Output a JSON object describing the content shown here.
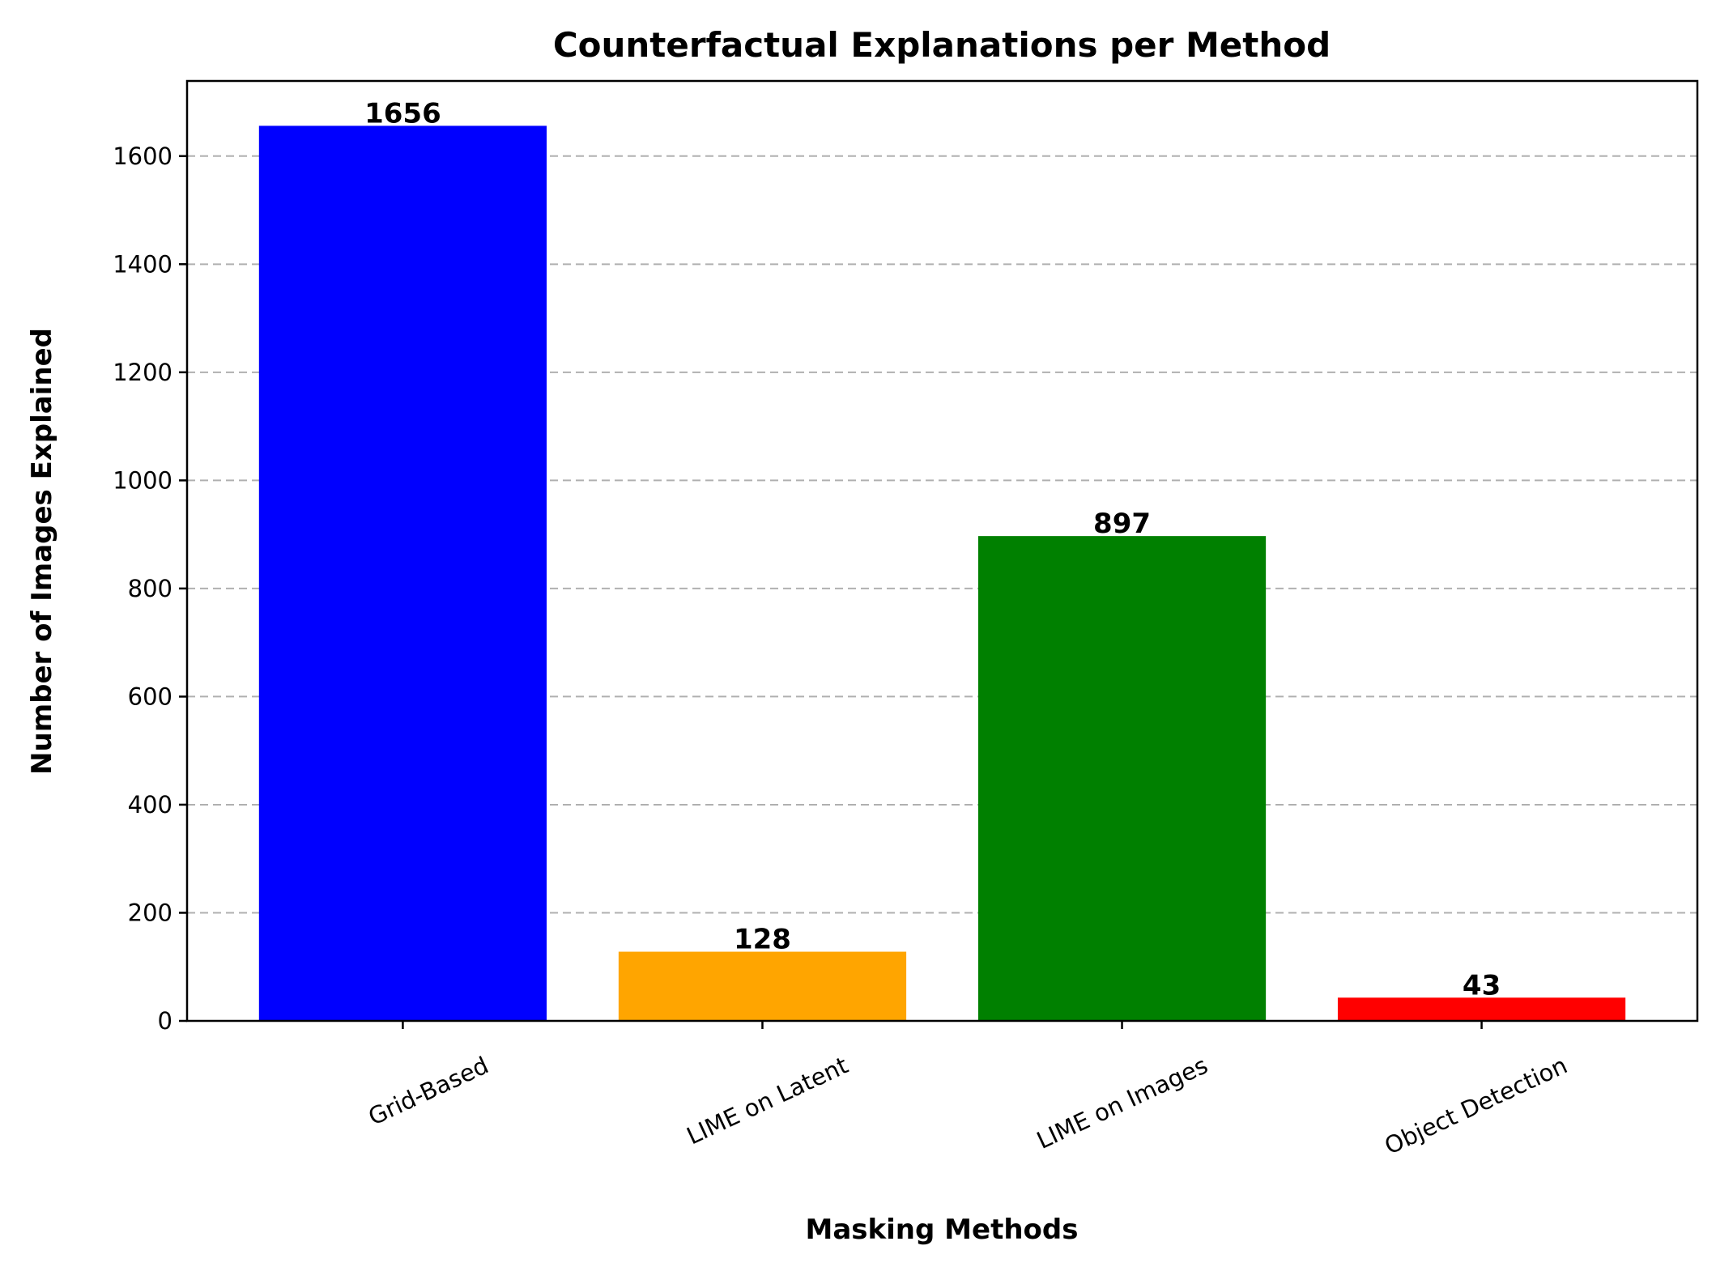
{
  "chart_data": {
    "type": "bar",
    "title": "Counterfactual Explanations per Method",
    "xlabel": "Masking Methods",
    "ylabel": "Number of Images Explained",
    "categories": [
      "Grid-Based",
      "LIME on Latent",
      "LIME on Images",
      "Object Detection"
    ],
    "values": [
      1656,
      128,
      897,
      43
    ],
    "colors": [
      "#0000ff",
      "#ffa500",
      "#008000",
      "#ff0000"
    ],
    "yticks": [
      0,
      200,
      400,
      600,
      800,
      1000,
      1200,
      1400,
      1600
    ],
    "ylim": [
      0,
      1739
    ],
    "grid": "horizontal-dashed",
    "legend": "none"
  }
}
